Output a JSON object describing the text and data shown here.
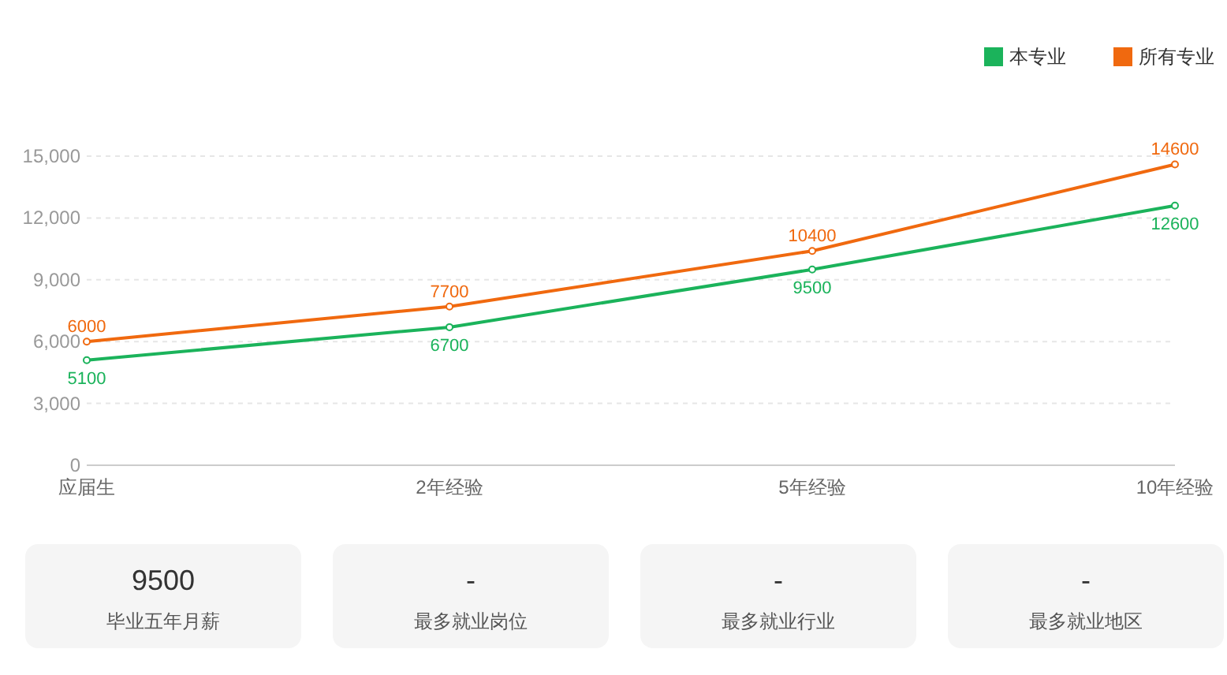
{
  "chart_data": [
    {
      "type": "line",
      "categories": [
        "应届生",
        "2年经验",
        "5年经验",
        "10年经验"
      ],
      "series": [
        {
          "name": "本专业",
          "color": "#1bb35b",
          "values": [
            5100,
            6700,
            9500,
            12600
          ]
        },
        {
          "name": "所有专业",
          "color": "#f0690f",
          "values": [
            6000,
            7700,
            10400,
            14600
          ]
        }
      ],
      "ylim": [
        0,
        15000
      ],
      "yticks": [
        0,
        {
          "value": 3000,
          "label": "3,000"
        },
        {
          "value": 6000,
          "label": "6,000"
        },
        {
          "value": 9000,
          "label": "9,000"
        },
        {
          "value": 12000,
          "label": "12,000"
        },
        {
          "value": 15000,
          "label": "15,000"
        }
      ],
      "grid": "y",
      "legend": "top right",
      "data_labels": true,
      "marker": "circle"
    },
    {
      "type": "other",
      "annotations": [
        "9500",
        "毕业五年月薪",
        "-",
        "最多就业岗位",
        "-",
        "最多就业行业",
        "-",
        "最多就业地区"
      ]
    }
  ]
}
